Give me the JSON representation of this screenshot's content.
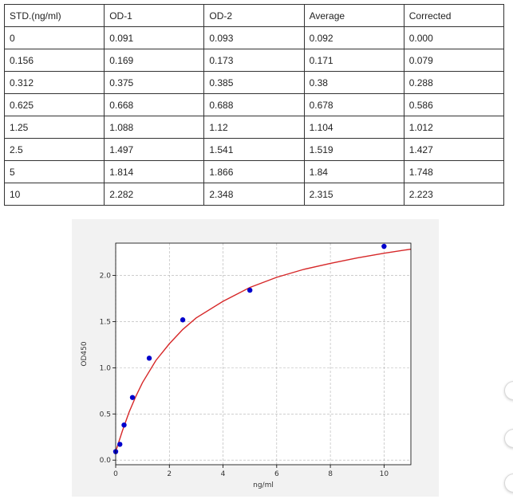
{
  "table": {
    "headers": [
      "STD.(ng/ml)",
      "OD-1",
      "OD-2",
      "Average",
      "Corrected"
    ],
    "rows": [
      [
        "0",
        "0.091",
        "0.093",
        "0.092",
        "0.000"
      ],
      [
        "0.156",
        "0.169",
        "0.173",
        "0.171",
        "0.079"
      ],
      [
        "0.312",
        "0.375",
        "0.385",
        "0.38",
        "0.288"
      ],
      [
        "0.625",
        "0.668",
        "0.688",
        "0.678",
        "0.586"
      ],
      [
        "1.25",
        "1.088",
        "1.12",
        "1.104",
        "1.012"
      ],
      [
        "2.5",
        "1.497",
        "1.541",
        "1.519",
        "1.427"
      ],
      [
        "5",
        "1.814",
        "1.866",
        "1.84",
        "1.748"
      ],
      [
        "10",
        "2.282",
        "2.348",
        "2.315",
        "2.223"
      ]
    ]
  },
  "chart_data": {
    "type": "scatter",
    "title": "",
    "xlabel": "ng/ml",
    "ylabel": "OD450",
    "xlim": [
      0,
      11
    ],
    "ylim": [
      -0.05,
      2.35
    ],
    "xticks": [
      0,
      2,
      4,
      6,
      8,
      10
    ],
    "yticks": [
      0.0,
      0.5,
      1.0,
      1.5,
      2.0
    ],
    "grid": true,
    "series": [
      {
        "kind": "points",
        "color": "#0000cc",
        "x": [
          0,
          0.156,
          0.312,
          0.625,
          1.25,
          2.5,
          5,
          10
        ],
        "y": [
          0.092,
          0.171,
          0.38,
          0.678,
          1.104,
          1.519,
          1.84,
          2.315
        ]
      },
      {
        "kind": "fit-curve",
        "color": "#d62728",
        "x": [
          0,
          0.25,
          0.5,
          0.75,
          1,
          1.5,
          2,
          2.5,
          3,
          4,
          5,
          6,
          7,
          8,
          9,
          10,
          11
        ],
        "y": [
          0.092,
          0.317,
          0.52,
          0.69,
          0.84,
          1.08,
          1.26,
          1.415,
          1.54,
          1.72,
          1.87,
          1.98,
          2.065,
          2.13,
          2.19,
          2.24,
          2.285
        ]
      }
    ]
  }
}
